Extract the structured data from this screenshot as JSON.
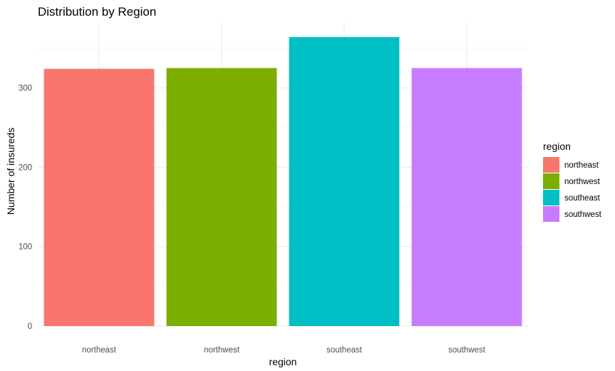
{
  "chart_data": {
    "type": "bar",
    "title": "Distribution by Region",
    "xlabel": "region",
    "ylabel": "Number of insureds",
    "categories": [
      "northeast",
      "northwest",
      "southeast",
      "southwest"
    ],
    "values": [
      324,
      325,
      364,
      325
    ],
    "colors": [
      "#F8766D",
      "#7CAE00",
      "#00BFC4",
      "#C77CFF"
    ],
    "ylim": [
      0,
      364
    ],
    "yticks": [
      0,
      100,
      200,
      300
    ],
    "grid": true,
    "legend": {
      "title": "region",
      "position": "right",
      "entries": [
        "northeast",
        "northwest",
        "southeast",
        "southwest"
      ]
    }
  }
}
